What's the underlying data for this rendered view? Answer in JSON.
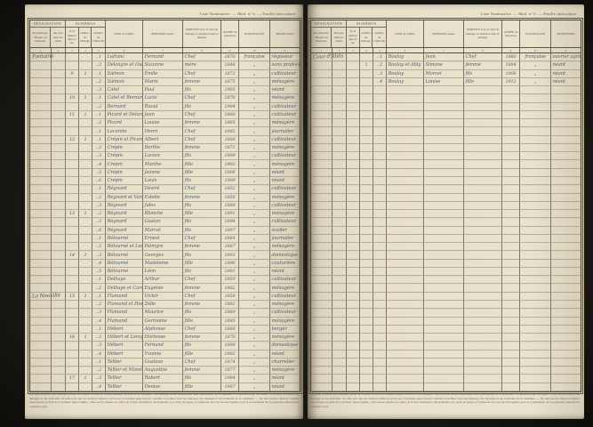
{
  "table": {
    "caption": "Liste Nominative. — Mod. n° 6. — Feuille intercalaire.",
    "groups": {
      "designation": "DÉSIGNATION",
      "numeros": "NUMÉROS"
    },
    "headers": {
      "maisons": "des maisons, villages ou hameaux",
      "rues": "des rues dans les villes",
      "no_maison": "de la maison dans la rue",
      "no_menage": "numéro de ménage",
      "no_individu": "numéro de l'individu",
      "nom": "NOM de famille",
      "prenom": "PRÉNOMS usuels",
      "parente": "PARENTÉ avec le chef de ménage ou situation dans le ménage",
      "annee": "ANNÉE de naissance",
      "nationalite": "NATIONALITÉ",
      "profession": "PROFESSION"
    },
    "marks": [
      "1",
      "2",
      "3",
      "4",
      "5",
      "6",
      "7",
      "8",
      "9",
      "10",
      "11"
    ],
    "total_rows": 41,
    "footnote": "(a) Dans le relevé par maisons, porter en vedette le nom de chaque hameau ou écart et le souligner. Les maisons seront numérotées sans interruption de la première à la dernière page du cahier ; il en sera de même des ménages et des individus, de telle sorte que les derniers numéros portés sur la dernière page fassent connaître le nombre total des maisons, des ménages et des habitants de la commune. — Ne rien inscrire dans les feuilles intercalaires au delà de la dernière ligne remplie ; elles seront réunies au cahier de la liste nominative des habitants, par ordre de pages, et formeront avec lui un seul registre pour le recensement de la population municipale comptée à part."
  },
  "pages": [
    {
      "sections": [
        {
          "row": 0,
          "label": "Fontaine"
        },
        {
          "row": 29,
          "label": "La Neuville"
        }
      ],
      "rows": [
        [
          "",
          "",
          "1",
          "Lefranc",
          "Fernand",
          "Chef",
          "1870",
          "française",
          "régisseur"
        ],
        [
          "",
          "",
          "2",
          "Delangre et Oudart",
          "Suzanne",
          "mère",
          "1848",
          "„",
          "sans profession"
        ],
        [
          "9",
          "1",
          "1",
          "Salmon",
          "Émile",
          "Chef",
          "1872",
          "„",
          "cultivateur"
        ],
        [
          "",
          "",
          "2",
          "Salmon",
          "Marie",
          "femme",
          "1875",
          "„",
          "ménagère"
        ],
        [
          "",
          "",
          "3",
          "Catel",
          "Paul",
          "fils",
          "1905",
          "„",
          "néant"
        ],
        [
          "10",
          "1",
          "1",
          "Catel et Bernard",
          "Lucie",
          "Chef",
          "1876",
          "„",
          "ménagère"
        ],
        [
          "",
          "",
          "2",
          "Bernard",
          "Raoul",
          "fils",
          "1904",
          "„",
          "cultivateur"
        ],
        [
          "11",
          "1",
          "1",
          "Picard et Delarue",
          "Jean",
          "Chef",
          "1860",
          "„",
          "cultivateur"
        ],
        [
          "",
          "",
          "2",
          "Picard",
          "Louise",
          "femme",
          "1865",
          "„",
          "ménagère"
        ],
        [
          "",
          "",
          "1",
          "Lecomte",
          "Henri",
          "Chef",
          "1885",
          "„",
          "journalier"
        ],
        [
          "12",
          "1",
          "1",
          "Crépin et Picard",
          "Albert",
          "Chef",
          "1868",
          "„",
          "cultivateur"
        ],
        [
          "",
          "",
          "2",
          "Crépin",
          "Berthe",
          "femme",
          "1871",
          "„",
          "ménagère"
        ],
        [
          "",
          "",
          "3",
          "Crépin",
          "Lucien",
          "fils",
          "1899",
          "„",
          "cultivateur"
        ],
        [
          "",
          "",
          "4",
          "Crépin",
          "Marthe",
          "fille",
          "1903",
          "„",
          "ménagère"
        ],
        [
          "",
          "",
          "5",
          "Crépin",
          "Jeanne",
          "fille",
          "1906",
          "„",
          "néant"
        ],
        [
          "",
          "",
          "6",
          "Crépin",
          "Louis",
          "fils",
          "1909",
          "„",
          "néant"
        ],
        [
          "",
          "",
          "1",
          "Régnard",
          "Désiré",
          "Chef",
          "1852",
          "„",
          "cultivateur"
        ],
        [
          "",
          "",
          "2",
          "Régnard et Varlet",
          "Estelle",
          "femme",
          "1856",
          "„",
          "ménagère"
        ],
        [
          "",
          "",
          "3",
          "Régnard",
          "Jules",
          "fils",
          "1888",
          "„",
          "cultivateur"
        ],
        [
          "13",
          "1",
          "2",
          "Régnard",
          "Blanche",
          "fille",
          "1891",
          "„",
          "ménagère"
        ],
        [
          "",
          "",
          "3",
          "Régnard",
          "Gaston",
          "fils",
          "1894",
          "„",
          "cultivateur"
        ],
        [
          "",
          "",
          "6",
          "Régnard",
          "Marcel",
          "fils",
          "1897",
          "„",
          "écolier"
        ],
        [
          "",
          "",
          "1",
          "Bétourné",
          "Ernest",
          "Chef",
          "1864",
          "„",
          "journalier"
        ],
        [
          "",
          "",
          "2",
          "Bétourné et Leduc",
          "Palmyre",
          "femme",
          "1867",
          "„",
          "ménagère"
        ],
        [
          "14",
          "1",
          "3",
          "Bétourné",
          "Georges",
          "fils",
          "1893",
          "„",
          "domestique"
        ],
        [
          "",
          "",
          "4",
          "Bétourné",
          "Madeleine",
          "fille",
          "1896",
          "„",
          "couturière"
        ],
        [
          "",
          "",
          "5",
          "Bétourné",
          "Léon",
          "fils",
          "1901",
          "„",
          "néant"
        ],
        [
          "",
          "",
          "1",
          "Delhaye",
          "Arthur",
          "Chef",
          "1859",
          "„",
          "cultivateur"
        ],
        [
          "",
          "",
          "2",
          "Delhaye et Caron",
          "Eugénie",
          "femme",
          "1862",
          "„",
          "ménagère"
        ],
        [
          "15",
          "1",
          "1",
          "Flamand",
          "Victor",
          "Chef",
          "1858",
          "„",
          "cultivateur"
        ],
        [
          "",
          "",
          "2",
          "Flamand et Houry",
          "Zélie",
          "femme",
          "1861",
          "„",
          "ménagère"
        ],
        [
          "",
          "",
          "3",
          "Flamand",
          "Maurice",
          "fils",
          "1889",
          "„",
          "cultivateur"
        ],
        [
          "",
          "",
          "4",
          "Flamand",
          "Germaine",
          "fille",
          "1895",
          "„",
          "ménagère"
        ],
        [
          "",
          "",
          "1",
          "Hébert",
          "Alphonse",
          "Chef",
          "1866",
          "„",
          "berger"
        ],
        [
          "16",
          "1",
          "2",
          "Hébert et Leroy",
          "Hortense",
          "femme",
          "1870",
          "„",
          "ménagère"
        ],
        [
          "",
          "",
          "3",
          "Hébert",
          "Fernand",
          "fils",
          "1898",
          "„",
          "domestique"
        ],
        [
          "",
          "",
          "4",
          "Hébert",
          "Yvonne",
          "fille",
          "1902",
          "„",
          "néant"
        ],
        [
          "",
          "",
          "1",
          "Tellier",
          "Gustave",
          "Chef",
          "1874",
          "„",
          "charretier"
        ],
        [
          "",
          "",
          "2",
          "Tellier et Morel",
          "Augustine",
          "femme",
          "1877",
          "„",
          "ménagère"
        ],
        [
          "17",
          "1",
          "3",
          "Tellier",
          "Robert",
          "fils",
          "1904",
          "„",
          "néant"
        ],
        [
          "",
          "",
          "4",
          "Tellier",
          "Denise",
          "fille",
          "1907",
          "„",
          "néant"
        ]
      ]
    },
    {
      "sections": [
        {
          "row": 0,
          "label": "Cour d'Ablis"
        }
      ],
      "rows": [
        [
          "",
          "",
          "1",
          "Boulay",
          "Jean",
          "Chef",
          "1880",
          "française",
          "ouvrier agricole"
        ],
        [
          "",
          "1",
          "2",
          "Boulay et Ably",
          "Simone",
          "femme",
          "1884",
          "„",
          "néant"
        ],
        [
          "",
          "",
          "3",
          "Boulay",
          "Marcel",
          "fils",
          "1908",
          "„",
          "néant"
        ],
        [
          "",
          "",
          "4",
          "Boulay",
          "Louise",
          "fille",
          "1912",
          "„",
          "néant"
        ]
      ]
    }
  ]
}
